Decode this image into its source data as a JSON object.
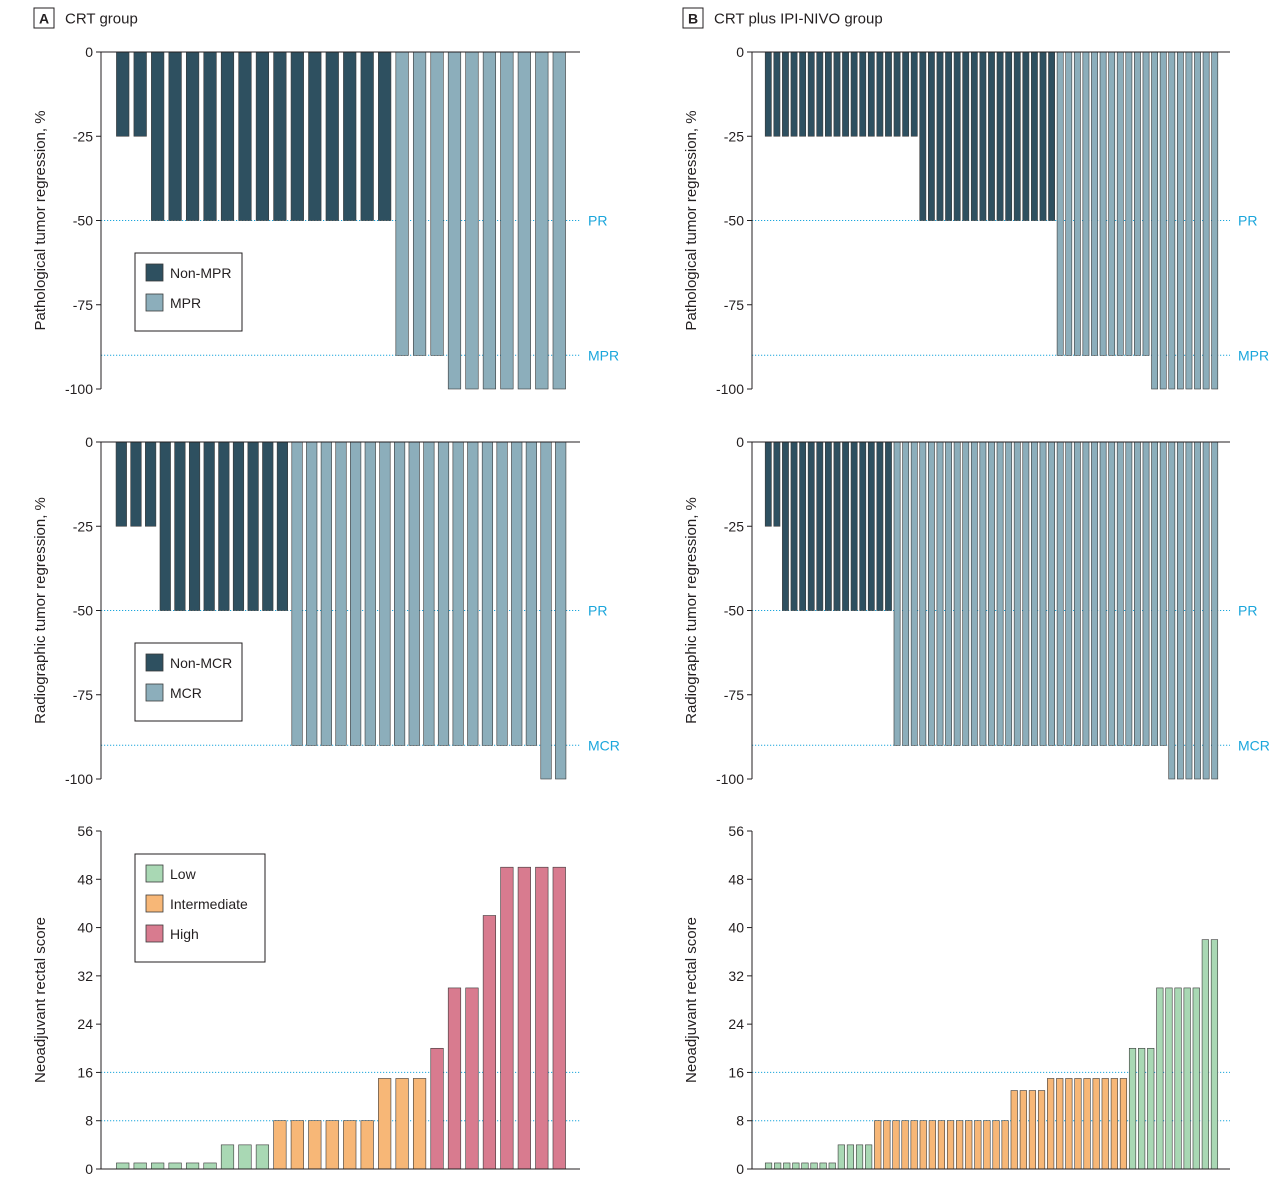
{
  "colors": {
    "non_mpr": "#2e5060",
    "mpr": "#8caebb",
    "low": "#a9d8b4",
    "intermediate": "#f7b777",
    "high": "#d87b8f",
    "ref_line": "#1ba6dc",
    "axis": "#231f20",
    "bar_stroke": "#3a3a3a"
  },
  "panels": [
    {
      "id": "A",
      "letter": "A",
      "title": "CRT group",
      "charts": [
        {
          "type": "bar",
          "ylabel": "Pathological tumor regression, %",
          "ylim": [
            -100,
            0
          ],
          "yticks": [
            0,
            -25,
            -50,
            -75,
            -100
          ],
          "ytick_labels": [
            "0",
            "-25",
            "-50",
            "-75",
            "-100"
          ],
          "ref_lines": [
            {
              "value": -50,
              "label": "PR"
            },
            {
              "value": -90,
              "label": "MPR"
            }
          ],
          "legend": [
            {
              "label": "Non-MPR",
              "color_key": "non_mpr"
            },
            {
              "label": "MPR",
              "color_key": "mpr"
            }
          ],
          "legend_position": "middle-left",
          "series": [
            {
              "name": "Non-MPR",
              "color_key": "non_mpr",
              "values": [
                -25,
                -25,
                -50,
                -50,
                -50,
                -50,
                -50,
                -50,
                -50,
                -50,
                -50,
                -50,
                -50,
                -50,
                -50,
                -50
              ]
            },
            {
              "name": "MPR",
              "color_key": "mpr",
              "values": [
                -90,
                -90,
                -90,
                -100,
                -100,
                -100,
                -100,
                -100,
                -100,
                -100
              ]
            }
          ]
        },
        {
          "type": "bar",
          "ylabel": "Radiographic tumor regression, %",
          "ylim": [
            -100,
            0
          ],
          "yticks": [
            0,
            -25,
            -50,
            -75,
            -100
          ],
          "ytick_labels": [
            "0",
            "-25",
            "-50",
            "-75",
            "-100"
          ],
          "ref_lines": [
            {
              "value": -50,
              "label": "PR"
            },
            {
              "value": -90,
              "label": "MCR"
            }
          ],
          "legend": [
            {
              "label": "Non-MCR",
              "color_key": "non_mpr"
            },
            {
              "label": "MCR",
              "color_key": "mpr"
            }
          ],
          "legend_position": "middle-left",
          "series": [
            {
              "name": "Non-MCR",
              "color_key": "non_mpr",
              "values": [
                -25,
                -25,
                -25,
                -50,
                -50,
                -50,
                -50,
                -50,
                -50,
                -50,
                -50,
                -50
              ]
            },
            {
              "name": "MCR",
              "color_key": "mpr",
              "values": [
                -90,
                -90,
                -90,
                -90,
                -90,
                -90,
                -90,
                -90,
                -90,
                -90,
                -90,
                -90,
                -90,
                -90,
                -90,
                -90,
                -90,
                -100,
                -100
              ]
            }
          ]
        },
        {
          "type": "bar",
          "ylabel": "Neoadjuvant rectal score",
          "ylim": [
            0,
            56
          ],
          "yticks": [
            0,
            8,
            16,
            24,
            32,
            40,
            48,
            56
          ],
          "ytick_labels": [
            "0",
            "8",
            "16",
            "24",
            "32",
            "40",
            "48",
            "56"
          ],
          "ref_lines": [
            {
              "value": 8,
              "label": ""
            },
            {
              "value": 16,
              "label": ""
            }
          ],
          "legend": [
            {
              "label": "Low",
              "color_key": "low"
            },
            {
              "label": "Intermediate",
              "color_key": "intermediate"
            },
            {
              "label": "High",
              "color_key": "high"
            }
          ],
          "legend_position": "top-left",
          "series": [
            {
              "name": "Low",
              "color_key": "low",
              "values": [
                1,
                1,
                1,
                1,
                1,
                1,
                4,
                4,
                4
              ]
            },
            {
              "name": "Intermediate",
              "color_key": "intermediate",
              "values": [
                8,
                8,
                8,
                8,
                8,
                8,
                15,
                15,
                15
              ]
            },
            {
              "name": "High",
              "color_key": "high",
              "values": [
                20,
                30,
                30,
                42,
                50,
                50,
                50,
                50
              ]
            }
          ]
        }
      ]
    },
    {
      "id": "B",
      "letter": "B",
      "title": "CRT plus IPI-NIVO group",
      "charts": [
        {
          "type": "bar",
          "ylabel": "Pathological tumor regression, %",
          "ylim": [
            -100,
            0
          ],
          "yticks": [
            0,
            -25,
            -50,
            -75,
            -100
          ],
          "ytick_labels": [
            "0",
            "-25",
            "-50",
            "-75",
            "-100"
          ],
          "ref_lines": [
            {
              "value": -50,
              "label": "PR"
            },
            {
              "value": -90,
              "label": "MPR"
            }
          ],
          "legend": [],
          "series": [
            {
              "name": "Non-MPR",
              "color_key": "non_mpr",
              "values": [
                -25,
                -25,
                -25,
                -25,
                -25,
                -25,
                -25,
                -25,
                -25,
                -25,
                -25,
                -25,
                -25,
                -25,
                -25,
                -25,
                -25,
                -25,
                -50,
                -50,
                -50,
                -50,
                -50,
                -50,
                -50,
                -50,
                -50,
                -50,
                -50,
                -50,
                -50,
                -50,
                -50,
                -50
              ]
            },
            {
              "name": "MPR",
              "color_key": "mpr",
              "values": [
                -90,
                -90,
                -90,
                -90,
                -90,
                -90,
                -90,
                -90,
                -90,
                -90,
                -90,
                -100,
                -100,
                -100,
                -100,
                -100,
                -100,
                -100,
                -100
              ]
            }
          ]
        },
        {
          "type": "bar",
          "ylabel": "Radiographic tumor regression, %",
          "ylim": [
            -100,
            0
          ],
          "yticks": [
            0,
            -25,
            -50,
            -75,
            -100
          ],
          "ytick_labels": [
            "0",
            "-25",
            "-50",
            "-75",
            "-100"
          ],
          "ref_lines": [
            {
              "value": -50,
              "label": "PR"
            },
            {
              "value": -90,
              "label": "MCR"
            }
          ],
          "legend": [],
          "series": [
            {
              "name": "Non-MCR",
              "color_key": "non_mpr",
              "values": [
                -25,
                -25,
                -50,
                -50,
                -50,
                -50,
                -50,
                -50,
                -50,
                -50,
                -50,
                -50,
                -50,
                -50,
                -50
              ]
            },
            {
              "name": "MCR",
              "color_key": "mpr",
              "values": [
                -90,
                -90,
                -90,
                -90,
                -90,
                -90,
                -90,
                -90,
                -90,
                -90,
                -90,
                -90,
                -90,
                -90,
                -90,
                -90,
                -90,
                -90,
                -90,
                -90,
                -90,
                -90,
                -90,
                -90,
                -90,
                -90,
                -90,
                -90,
                -90,
                -90,
                -90,
                -90,
                -100,
                -100,
                -100,
                -100,
                -100,
                -100
              ]
            }
          ]
        },
        {
          "type": "bar",
          "ylabel": "Neoadjuvant rectal score",
          "ylim": [
            0,
            56
          ],
          "yticks": [
            0,
            8,
            16,
            24,
            32,
            40,
            48,
            56
          ],
          "ytick_labels": [
            "0",
            "8",
            "16",
            "24",
            "32",
            "40",
            "48",
            "56"
          ],
          "ref_lines": [
            {
              "value": 8,
              "label": ""
            },
            {
              "value": 16,
              "label": ""
            }
          ],
          "legend": [],
          "series": [
            {
              "name": "Low",
              "color_key": "low",
              "values": [
                1,
                1,
                1,
                1,
                1,
                1,
                1,
                1,
                4,
                4,
                4,
                4
              ]
            },
            {
              "name": "Intermediate",
              "color_key": "intermediate",
              "values": [
                8,
                8,
                8,
                8,
                8,
                8,
                8,
                8,
                8,
                8,
                8,
                8,
                8,
                8,
                8,
                13,
                13,
                13,
                13,
                15,
                15,
                15,
                15,
                15,
                15,
                15,
                15,
                15
              ]
            },
            {
              "name": "Low",
              "color_key": "low",
              "values": [
                20,
                20,
                20,
                30,
                30,
                30,
                30,
                30,
                38,
                38
              ]
            }
          ]
        }
      ]
    }
  ]
}
